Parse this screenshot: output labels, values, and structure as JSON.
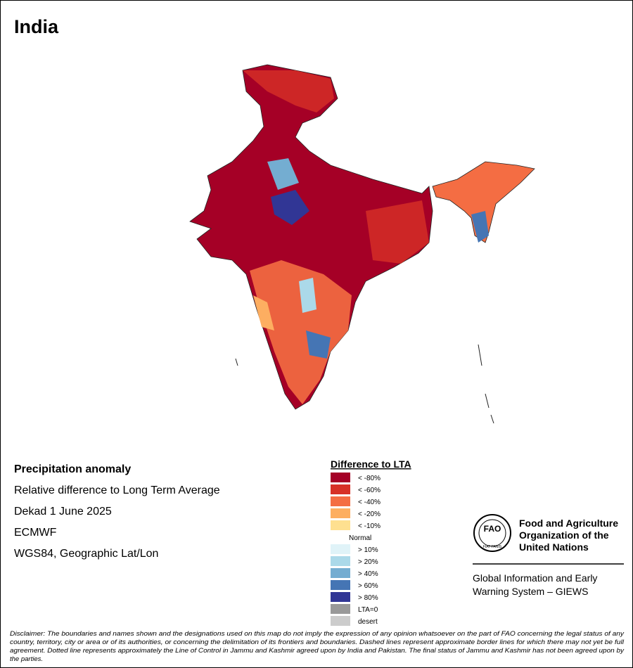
{
  "header": {
    "title": "India"
  },
  "info": [
    "Precipitation anomaly",
    "Relative difference to Long Term Average",
    "Dekad 1 June 2025",
    "ECMWF",
    "WGS84, Geographic Lat/Lon"
  ],
  "legend": {
    "title": "Difference to LTA",
    "items": [
      {
        "label": "< -80%",
        "color": "#a50026"
      },
      {
        "label": "< -60%",
        "color": "#d73027"
      },
      {
        "label": "< -40%",
        "color": "#f46d43"
      },
      {
        "label": "< -20%",
        "color": "#fdae61"
      },
      {
        "label": "< -10%",
        "color": "#fee090"
      },
      {
        "label": "Normal"
      },
      {
        "label": "> 10%",
        "color": "#e0f3f8"
      },
      {
        "label": "> 20%",
        "color": "#abd9e9"
      },
      {
        "label": "> 40%",
        "color": "#74add1"
      },
      {
        "label": "> 60%",
        "color": "#4575b4"
      },
      {
        "label": "> 80%",
        "color": "#313695"
      },
      {
        "label": "LTA=0",
        "color": "#999999"
      },
      {
        "label": "desert",
        "color": "#cccccc"
      }
    ]
  },
  "logo": {
    "acronym": "FAO",
    "motto": "FIAT PANIS",
    "org": [
      "Food and Agriculture",
      "Organization of the",
      "United Nations"
    ],
    "system": [
      "Global Information and Early",
      "Warning System – GIEWS"
    ]
  },
  "disclaimer": [
    "Disclaimer: The boundaries and names shown and the designations used on this map do not imply the expression of any opinion whatsoever on the part of FAO concerning the legal status of any",
    "country, territory, city or area or of its authorities, or concerning the delimitation of its frontiers and boundaries. Dashed lines represent approximate border lines for which there may not yet be full",
    "agreement. Dotted line represents approximately the Line of Control in Jammu and Kashmir agreed upon by India and Pakistan. The final status of Jammu and Kashmir has not been agreed upon by",
    "the parties."
  ]
}
